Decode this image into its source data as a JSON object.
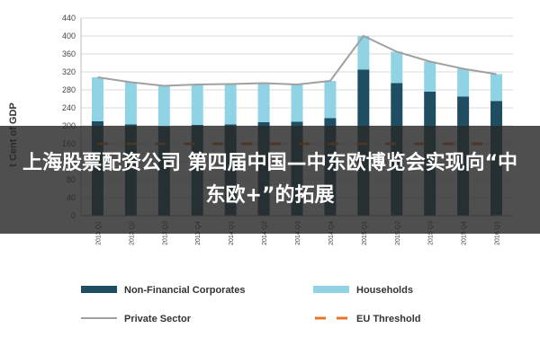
{
  "overlay": {
    "title": "上海股票配资公司 第四届中国—中东欧博览会实现向“中东欧+”的拓展"
  },
  "chart_data": {
    "type": "bar",
    "stacked": true,
    "ylabel": "t Cent of GDP",
    "ylim": [
      0,
      440
    ],
    "yticks": [
      0,
      40,
      80,
      120,
      160,
      200,
      240,
      280,
      320,
      360,
      400,
      440
    ],
    "grid": true,
    "legend_position": "bottom",
    "categories": [
      "2013 Q1",
      "2013 Q2",
      "2013 Q3",
      "2013 Q4",
      "2014 Q1",
      "2014 Q2",
      "2014 Q3",
      "2014 Q4",
      "2015 Q1",
      "2015 Q2",
      "2015 Q3",
      "2015 Q4",
      "2016 Q1"
    ],
    "series": [
      {
        "name": "Non-Financial Corporates",
        "kind": "bar",
        "color": "#1f4e62",
        "values": [
          210,
          203,
          198,
          202,
          203,
          208,
          209,
          217,
          325,
          295,
          276,
          265,
          255
        ]
      },
      {
        "name": "Households",
        "kind": "bar",
        "color": "#8fd3e5",
        "values": [
          98,
          94,
          91,
          90,
          90,
          87,
          83,
          83,
          75,
          70,
          67,
          62,
          60
        ]
      },
      {
        "name": "Private Sector",
        "kind": "line",
        "color": "#a0a0a0",
        "values": [
          308,
          297,
          289,
          292,
          293,
          295,
          292,
          300,
          400,
          365,
          343,
          327,
          315
        ]
      },
      {
        "name": "EU Threshold",
        "kind": "dashed-line",
        "color": "#e8742a",
        "values": [
          160,
          160,
          160,
          160,
          160,
          160,
          160,
          160,
          160,
          160,
          160,
          160,
          160
        ]
      }
    ]
  }
}
